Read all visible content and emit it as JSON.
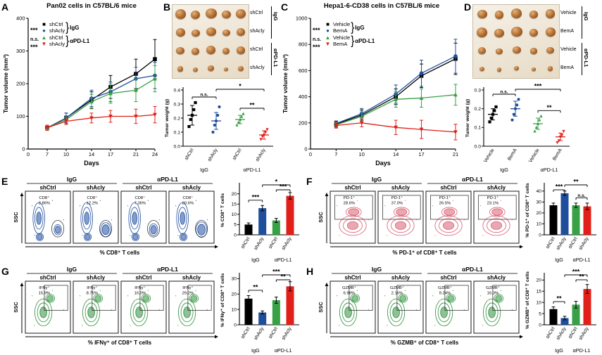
{
  "colors": {
    "black": "#000000",
    "blue": "#1f4e9c",
    "green": "#38a045",
    "red": "#e02019"
  },
  "chart_data": [
    {
      "panel": "A",
      "type": "line",
      "title": "Pan02 cells in C57BL/6 mice",
      "xlabel": "Days",
      "ylabel": "Tumor volume (mm³)",
      "x": [
        7,
        10,
        14,
        17,
        21,
        24
      ],
      "ylim": [
        0,
        400
      ],
      "yticks": [
        0,
        100,
        200,
        300,
        400
      ],
      "x_origin_label": "0",
      "series": [
        {
          "name": "shCtrl",
          "group": "IgG",
          "color": "#000000",
          "marker": "square",
          "values": [
            65,
            95,
            150,
            190,
            230,
            275
          ],
          "err": [
            8,
            15,
            25,
            35,
            45,
            60
          ]
        },
        {
          "name": "shAcly",
          "group": "IgG",
          "color": "#1f4e9c",
          "marker": "circle",
          "values": [
            65,
            95,
            155,
            175,
            215,
            225
          ],
          "err": [
            8,
            15,
            25,
            30,
            35,
            40
          ]
        },
        {
          "name": "shCtrl",
          "group": "αPD-L1",
          "color": "#38a045",
          "marker": "tri",
          "values": [
            65,
            90,
            145,
            170,
            180,
            215
          ],
          "err": [
            8,
            12,
            22,
            30,
            35,
            40
          ]
        },
        {
          "name": "shAcly",
          "group": "αPD-L1",
          "color": "#e02019",
          "marker": "trid",
          "values": [
            65,
            85,
            95,
            100,
            100,
            105
          ],
          "err": [
            8,
            10,
            15,
            18,
            22,
            25
          ]
        }
      ],
      "significance": [
        "***",
        "n.s.",
        "***"
      ]
    },
    {
      "panel": "B",
      "type": "photo+scatter",
      "photo": {
        "columns": 5,
        "group_labels": [
          "IgG",
          "αPD-L1"
        ],
        "rows": [
          {
            "label": "shCtrl",
            "group": "IgG",
            "size": 15
          },
          {
            "label": "shAcly",
            "group": "IgG",
            "size": 13
          },
          {
            "label": "shCtrl",
            "group": "αPD-L1",
            "size": 12
          },
          {
            "label": "shAcly",
            "group": "αPD-L1",
            "size": 8
          }
        ]
      },
      "scatter": {
        "ylabel": "Tumor weight (g)",
        "ylim": [
          0,
          0.4
        ],
        "yticks": [
          0,
          0.1,
          0.2,
          0.3,
          0.4
        ],
        "categories": [
          "shCtrl",
          "shAcly",
          "shCtrl",
          "shAcly"
        ],
        "group_labels": [
          "IgG",
          "αPD-L1"
        ],
        "colors": [
          "#000000",
          "#1f4e9c",
          "#38a045",
          "#e02019"
        ],
        "markers": [
          "square",
          "circle",
          "tri",
          "trid"
        ],
        "points": [
          [
            0.14,
            0.19,
            0.22,
            0.26,
            0.31
          ],
          [
            0.1,
            0.15,
            0.18,
            0.22,
            0.28
          ],
          [
            0.15,
            0.17,
            0.19,
            0.21,
            0.23
          ],
          [
            0.05,
            0.07,
            0.08,
            0.1,
            0.12
          ]
        ],
        "means": [
          0.22,
          0.18,
          0.19,
          0.08
        ],
        "sd": [
          0.07,
          0.06,
          0.03,
          0.03
        ],
        "significance": [
          {
            "pair": [
              0,
              1
            ],
            "label": "n.s."
          },
          {
            "pair": [
              2,
              3
            ],
            "label": "**"
          },
          {
            "pair": [
              1,
              3
            ],
            "label": "*",
            "top": true
          }
        ]
      }
    },
    {
      "panel": "C",
      "type": "line",
      "title": "Hepa1-6-CD38 cells in C57BL/6 mice",
      "xlabel": "Days",
      "ylabel": "Tumor volume (mm³)",
      "x": [
        7,
        10,
        14,
        17,
        21
      ],
      "ylim": [
        0,
        1000
      ],
      "yticks": [
        0,
        200,
        400,
        600,
        800,
        1000
      ],
      "x_origin_label": "0",
      "series": [
        {
          "name": "Vehicle",
          "group": "IgG",
          "color": "#000000",
          "marker": "square",
          "values": [
            190,
            260,
            400,
            560,
            690
          ],
          "err": [
            20,
            40,
            60,
            90,
            120
          ]
        },
        {
          "name": "BemA",
          "group": "IgG",
          "color": "#1f4e9c",
          "marker": "circle",
          "values": [
            195,
            270,
            420,
            580,
            710
          ],
          "err": [
            20,
            40,
            70,
            100,
            130
          ]
        },
        {
          "name": "Vehicle",
          "group": "αPD-L1",
          "color": "#38a045",
          "marker": "tri",
          "values": [
            185,
            250,
            380,
            390,
            415
          ],
          "err": [
            20,
            40,
            60,
            70,
            80
          ]
        },
        {
          "name": "BemA",
          "group": "αPD-L1",
          "color": "#e02019",
          "marker": "trid",
          "values": [
            180,
            200,
            165,
            150,
            130
          ],
          "err": [
            20,
            30,
            55,
            70,
            60
          ]
        }
      ],
      "significance": [
        "***",
        "n.s.",
        "***"
      ]
    },
    {
      "panel": "D",
      "type": "photo+scatter",
      "photo": {
        "columns": 5,
        "group_labels": [
          "IgG",
          "αPD-L1"
        ],
        "rows": [
          {
            "label": "Vehicle",
            "group": "IgG",
            "size": 14
          },
          {
            "label": "BemA",
            "group": "IgG",
            "size": 15
          },
          {
            "label": "Vehicle",
            "group": "αPD-L1",
            "size": 11
          },
          {
            "label": "BemA",
            "group": "αPD-L1",
            "size": 7
          }
        ]
      },
      "scatter": {
        "ylabel": "Tumor weight (g)",
        "ylim": [
          0,
          0.3
        ],
        "yticks": [
          0,
          0.1,
          0.2,
          0.3
        ],
        "categories": [
          "Vehicle",
          "BemA",
          "Vehicle",
          "BemA"
        ],
        "group_labels": [
          "IgG",
          "αPD-L1"
        ],
        "colors": [
          "#000000",
          "#1f4e9c",
          "#38a045",
          "#e02019"
        ],
        "markers": [
          "square",
          "circle",
          "tri",
          "trid"
        ],
        "points": [
          [
            0.13,
            0.15,
            0.17,
            0.19,
            0.21
          ],
          [
            0.14,
            0.17,
            0.2,
            0.22,
            0.25
          ],
          [
            0.08,
            0.1,
            0.12,
            0.14,
            0.16
          ],
          [
            0.02,
            0.03,
            0.05,
            0.06,
            0.08
          ]
        ],
        "means": [
          0.17,
          0.2,
          0.12,
          0.05
        ],
        "sd": [
          0.03,
          0.04,
          0.03,
          0.02
        ],
        "significance": [
          {
            "pair": [
              0,
              1
            ],
            "label": "n.s."
          },
          {
            "pair": [
              2,
              3
            ],
            "label": "**"
          },
          {
            "pair": [
              1,
              3
            ],
            "label": "***",
            "top": true
          }
        ]
      }
    },
    {
      "panel": "E",
      "type": "flow+bar",
      "flow": {
        "group_labels": [
          "IgG",
          "αPD-L1"
        ],
        "columns": [
          "shCtrl",
          "shAcly",
          "shCtrl",
          "shAcly"
        ],
        "gate": "CD8⁺",
        "percentages": [
          "3.86%",
          "12.2%",
          "7.36%",
          "20.6%"
        ],
        "ylabel": "SSC",
        "xlabel": "% CD8⁺ T cells",
        "style": "cd8",
        "color": "#1f4e9c"
      },
      "bar": {
        "ylabel": "% CD8⁺ T cells",
        "ylim": [
          0,
          24
        ],
        "yticks": [
          0,
          5,
          10,
          15,
          20
        ],
        "categories": [
          "shCtrl",
          "shAcly",
          "shCtrl",
          "shAcly"
        ],
        "group_labels": [
          "IgG",
          "αPD-L1"
        ],
        "colors": [
          "#000000",
          "#1f4e9c",
          "#38a045",
          "#e02019"
        ],
        "values": [
          5,
          13,
          7,
          19
        ],
        "err": [
          0.8,
          1.3,
          1,
          1.6
        ],
        "significance": [
          {
            "pair": [
              0,
              1
            ],
            "label": "***"
          },
          {
            "pair": [
              2,
              3
            ],
            "label": "***"
          },
          {
            "pair": [
              1,
              3
            ],
            "label": "*",
            "top": true
          }
        ]
      }
    },
    {
      "panel": "F",
      "type": "flow+bar",
      "flow": {
        "group_labels": [
          "IgG",
          "αPD-L1"
        ],
        "columns": [
          "shCtrl",
          "shAcly",
          "shCtrl",
          "shAcly"
        ],
        "gate": "PD-1⁺",
        "percentages": [
          "28.6%",
          "37.0%",
          "26.5%",
          "23.1%"
        ],
        "ylabel": "SSC",
        "xlabel": "% PD-1⁺ of CD8⁺ T cells",
        "style": "pd1",
        "color": "#d95f72"
      },
      "bar": {
        "ylabel": "% PD-1⁺ of CD8⁺ T cells",
        "ylim": [
          0,
          45
        ],
        "yticks": [
          0,
          10,
          20,
          30,
          40
        ],
        "categories": [
          "shCtrl",
          "shAcly",
          "shCtrl",
          "shAcly"
        ],
        "group_labels": [
          "IgG",
          "αPD-L1"
        ],
        "colors": [
          "#000000",
          "#1f4e9c",
          "#38a045",
          "#e02019"
        ],
        "values": [
          27,
          38,
          27,
          26
        ],
        "err": [
          2,
          2,
          2,
          3
        ],
        "significance": [
          {
            "pair": [
              0,
              1
            ],
            "label": "***"
          },
          {
            "pair": [
              2,
              3
            ],
            "label": "n.s."
          },
          {
            "pair": [
              1,
              3
            ],
            "label": "**",
            "top": true
          }
        ]
      }
    },
    {
      "panel": "G",
      "type": "flow+bar",
      "flow": {
        "group_labels": [
          "IgG",
          "αPD-L1"
        ],
        "columns": [
          "shCtrl",
          "shAcly",
          "shCtrl",
          "shAcly"
        ],
        "gate": "IFNγ⁺",
        "percentages": [
          "15.9%",
          "8.75%",
          "16.0%",
          "29.2%"
        ],
        "ylabel": "SSC",
        "xlabel": "% IFNγ⁺ of CD8⁺ T cells",
        "style": "green",
        "color": "#2f8f3c"
      },
      "bar": {
        "ylabel": "% IFNγ⁺ of CD8⁺ T cells",
        "ylim": [
          0,
          32
        ],
        "yticks": [
          0,
          10,
          20,
          30
        ],
        "categories": [
          "shCtrl",
          "shAcly",
          "shCtrl",
          "shAcly"
        ],
        "group_labels": [
          "IgG",
          "αPD-L1"
        ],
        "colors": [
          "#000000",
          "#1f4e9c",
          "#38a045",
          "#e02019"
        ],
        "values": [
          17,
          8,
          16,
          25
        ],
        "err": [
          2,
          1,
          2,
          3
        ],
        "significance": [
          {
            "pair": [
              0,
              1
            ],
            "label": "**"
          },
          {
            "pair": [
              2,
              3
            ],
            "label": "**"
          },
          {
            "pair": [
              1,
              3
            ],
            "label": "***",
            "top": true
          }
        ]
      }
    },
    {
      "panel": "H",
      "type": "flow+bar",
      "flow": {
        "group_labels": [
          "IgG",
          "αPD-L1"
        ],
        "columns": [
          "shCtrl",
          "shAcly",
          "shCtrl",
          "shAcly"
        ],
        "gate": "GZMB⁺",
        "percentages": [
          "6.98%",
          "2.16%",
          "9.24%",
          "16.3%"
        ],
        "ylabel": "SSC",
        "xlabel": "% GZMB⁺ of CD8⁺ T cells",
        "style": "green",
        "color": "#2f8f3c"
      },
      "bar": {
        "ylabel": "% GZMB⁺ of CD8⁺ T cells",
        "ylim": [
          0,
          22
        ],
        "yticks": [
          0,
          5,
          10,
          15,
          20
        ],
        "categories": [
          "shCtrl",
          "shAcly",
          "shCtrl",
          "shAcly"
        ],
        "group_labels": [
          "IgG",
          "αPD-L1"
        ],
        "colors": [
          "#000000",
          "#1f4e9c",
          "#38a045",
          "#e02019"
        ],
        "values": [
          7,
          3,
          9,
          16
        ],
        "err": [
          1,
          0.8,
          1.5,
          2
        ],
        "significance": [
          {
            "pair": [
              0,
              1
            ],
            "label": "**"
          },
          {
            "pair": [
              2,
              3
            ],
            "label": "**"
          },
          {
            "pair": [
              1,
              3
            ],
            "label": "***",
            "top": true
          }
        ]
      }
    }
  ]
}
